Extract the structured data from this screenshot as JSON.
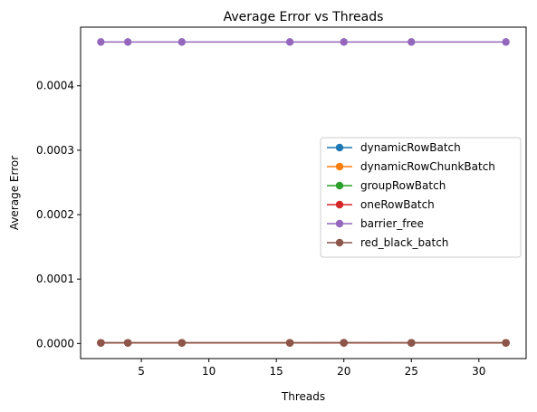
{
  "chart_data": {
    "type": "line",
    "title": "Average Error vs Threads",
    "xlabel": "Threads",
    "ylabel": "Average Error",
    "x": [
      2,
      4,
      8,
      16,
      20,
      25,
      32
    ],
    "xlim": [
      0.5,
      33.5
    ],
    "ylim": [
      -2.34e-05,
      0.000491
    ],
    "xticks": [
      5,
      10,
      15,
      20,
      25,
      30
    ],
    "yticks": [
      0.0,
      0.0001,
      0.0002,
      0.0003,
      0.0004
    ],
    "ytick_labels": [
      "0.0000",
      "0.0001",
      "0.0002",
      "0.0003",
      "0.0004"
    ],
    "grid": false,
    "legend_position": "center-right",
    "series": [
      {
        "name": "dynamicRowBatch",
        "color": "#1f77b4",
        "values": [
          1e-06,
          1e-06,
          1e-06,
          1e-06,
          1e-06,
          1e-06,
          1e-06
        ]
      },
      {
        "name": "dynamicRowChunkBatch",
        "color": "#ff7f0e",
        "values": [
          1e-06,
          1e-06,
          1e-06,
          1e-06,
          1e-06,
          1e-06,
          1e-06
        ]
      },
      {
        "name": "groupRowBatch",
        "color": "#2ca02c",
        "values": [
          1e-06,
          1e-06,
          1e-06,
          1e-06,
          1e-06,
          1e-06,
          1e-06
        ]
      },
      {
        "name": "oneRowBatch",
        "color": "#d62728",
        "values": [
          1e-06,
          1e-06,
          1e-06,
          1e-06,
          1e-06,
          1e-06,
          1e-06
        ]
      },
      {
        "name": "barrier_free",
        "color": "#9467bd",
        "values": [
          0.000468,
          0.000468,
          0.000468,
          0.000468,
          0.000468,
          0.000468,
          0.000468
        ]
      },
      {
        "name": "red_black_batch",
        "color": "#8c564b",
        "values": [
          1e-06,
          1e-06,
          1e-06,
          1e-06,
          1.2e-06,
          1e-06,
          1e-06
        ]
      }
    ]
  }
}
